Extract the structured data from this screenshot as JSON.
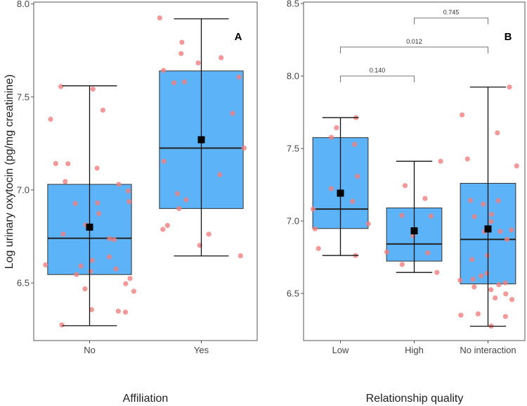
{
  "chart_data": [
    {
      "type": "box",
      "panel_label": "A",
      "xlabel": "Affiliation",
      "ylabel": "Log urinary oxytocin (pg/mg creatinine)",
      "ylim": [
        6.19,
        8.01
      ],
      "yticks": [
        "6.5",
        "7.0",
        "7.5",
        "8.0"
      ],
      "grid": false,
      "categories": [
        "No",
        "Yes"
      ],
      "colors": {
        "box": "#5CB3F8",
        "point": "#F08080",
        "mean": "#000000"
      },
      "boxes": [
        {
          "category": "No",
          "whisker_low": 6.27,
          "q1": 6.545,
          "median": 6.74,
          "q3": 7.03,
          "whisker_high": 7.56,
          "mean": 6.8
        },
        {
          "category": "Yes",
          "whisker_low": 6.645,
          "q1": 6.9,
          "median": 7.225,
          "q3": 7.64,
          "whisker_high": 7.92,
          "mean": 7.27
        }
      ],
      "points": [
        {
          "category": "No",
          "jitter": [
            -0.257,
            0.03,
            -0.349,
            0.119,
            -0.303,
            -0.193,
            0.067,
            -0.218,
            0.261,
            0.346,
            0.353,
            -0.128,
            0.071,
            0.083,
            -0.034,
            -0.236,
            0.179,
            0.22,
            0.176,
            -0.394,
            -0.078,
            0.236,
            0.023,
            -0.117,
            0.009,
            0.362,
            0.323,
            0.396,
            -0.041,
            0.018,
            0.257,
            0.321,
            -0.248
          ],
          "values": [
            7.556,
            7.542,
            7.38,
            7.429,
            7.142,
            7.141,
            7.117,
            7.045,
            7.03,
            6.995,
            6.937,
            6.927,
            6.93,
            6.873,
            6.812,
            6.763,
            6.738,
            6.733,
            6.64,
            6.597,
            6.591,
            6.575,
            6.621,
            6.545,
            6.562,
            6.524,
            6.496,
            6.455,
            6.468,
            6.356,
            6.348,
            6.343,
            6.274
          ]
        },
        {
          "category": "Yes",
          "jitter": [
            -0.372,
            -0.174,
            -0.181,
            0.177,
            -0.028,
            -0.339,
            0.337,
            -0.245,
            -0.151,
            0.28,
            0.383,
            -0.335,
            0.165,
            -0.213,
            -0.136,
            -0.2,
            -0.344,
            -0.303,
            0.067,
            -0.014,
            0.351
          ],
          "values": [
            7.925,
            7.794,
            7.733,
            7.711,
            7.683,
            7.643,
            7.607,
            7.576,
            7.581,
            7.412,
            7.225,
            7.154,
            7.082,
            6.98,
            6.947,
            6.9,
            6.788,
            6.809,
            6.762,
            6.702,
            6.646
          ]
        }
      ],
      "brackets": []
    },
    {
      "type": "box",
      "panel_label": "B",
      "xlabel": "Relationship quality",
      "ylabel": "",
      "ylim": [
        6.175,
        8.51
      ],
      "yticks": [
        "6.5",
        "7.0",
        "7.5",
        "8.0",
        "8.5"
      ],
      "grid": false,
      "categories": [
        "Low",
        "High",
        "No interaction"
      ],
      "colors": {
        "box": "#5CB3F8",
        "point": "#F08080",
        "mean": "#000000",
        "bracket": "#777777"
      },
      "boxes": [
        {
          "category": "Low",
          "whisker_low": 6.762,
          "q1": 6.948,
          "median": 7.082,
          "q3": 7.575,
          "whisker_high": 7.713,
          "mean": 7.192
        },
        {
          "category": "High",
          "whisker_low": 6.645,
          "q1": 6.723,
          "median": 6.841,
          "q3": 7.09,
          "whisker_high": 7.412,
          "mean": 6.932
        },
        {
          "category": "No interaction",
          "whisker_low": 6.274,
          "q1": 6.566,
          "median": 6.873,
          "q3": 7.26,
          "whisker_high": 7.924,
          "mean": 6.945
        }
      ],
      "points": [
        {
          "category": "Low",
          "jitter": [
            0.211,
            -0.054,
            -0.124,
            0.191,
            0.231,
            -0.124,
            0.164,
            -0.371,
            0.378,
            -0.344,
            -0.298,
            0.204
          ],
          "values": [
            7.713,
            7.643,
            7.577,
            7.528,
            7.308,
            7.223,
            7.135,
            7.082,
            6.98,
            6.946,
            6.81,
            6.762
          ]
        },
        {
          "category": "High",
          "jitter": [
            0.358,
            -0.124,
            0.147,
            -0.167,
            0.227,
            -0.017,
            -0.371,
            0.184,
            -0.164,
            0.308
          ],
          "values": [
            7.412,
            7.244,
            7.155,
            7.038,
            7.034,
            6.898,
            6.786,
            6.78,
            6.7,
            6.645
          ]
        },
        {
          "category": "No interaction",
          "jitter": [
            0.291,
            -0.351,
            0.127,
            -0.278,
            0.388,
            -0.237,
            0.14,
            -0.064,
            -0.184,
            0.05,
            0.043,
            -0.047,
            0.167,
            0.318,
            0.258,
            -0.217,
            -0.007,
            -0.013,
            -0.094,
            -0.378,
            -0.204,
            -0.187,
            0.04,
            0.147,
            0.234,
            0.097,
            0.241,
            0.324,
            -0.368,
            -0.134,
            0.237,
            0.043
          ],
          "values": [
            7.924,
            7.732,
            7.608,
            7.428,
            7.38,
            7.142,
            7.14,
            7.116,
            7.03,
            7.046,
            6.996,
            6.928,
            6.928,
            6.938,
            6.873,
            6.734,
            6.762,
            6.639,
            6.621,
            6.591,
            6.598,
            6.545,
            6.526,
            6.56,
            6.573,
            6.469,
            6.497,
            6.458,
            6.35,
            6.359,
            6.341,
            6.275
          ]
        }
      ],
      "brackets": [
        {
          "from": "Low",
          "to": "High",
          "label": "0.140",
          "y": 8.0
        },
        {
          "from": "Low",
          "to": "No interaction",
          "label": "0.012",
          "y": 8.2
        },
        {
          "from": "High",
          "to": "No interaction",
          "label": "0.745",
          "y": 8.4
        }
      ]
    }
  ]
}
